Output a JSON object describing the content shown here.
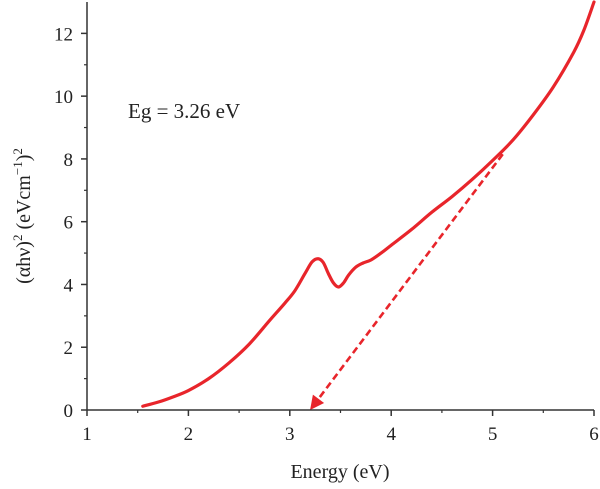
{
  "chart_data": {
    "type": "line",
    "xlabel": "Energy (eV)",
    "ylabel_parts": [
      "(αhν)",
      "2",
      " (eVcm",
      "−1",
      ")",
      "2"
    ],
    "xlim": [
      1,
      6
    ],
    "ylim": [
      0,
      13
    ],
    "xticks": [
      1,
      2,
      3,
      4,
      5,
      6
    ],
    "yticks": [
      0,
      2,
      4,
      6,
      8,
      10,
      12
    ],
    "grid": false,
    "annotation": "Eg = 3.26 eV",
    "colors": {
      "curve": "#e8252b",
      "axis": "#333333"
    },
    "series": [
      {
        "style": "solid",
        "x": [
          1.55,
          1.7,
          1.85,
          2.0,
          2.2,
          2.4,
          2.6,
          2.8,
          2.95,
          3.05,
          3.15,
          3.22,
          3.28,
          3.33,
          3.38,
          3.43,
          3.48,
          3.53,
          3.58,
          3.65,
          3.72,
          3.8,
          3.9,
          4.0,
          4.2,
          4.4,
          4.6,
          4.8,
          5.0,
          5.2,
          5.4,
          5.6,
          5.8,
          5.9,
          6.0
        ],
        "y": [
          0.12,
          0.25,
          0.42,
          0.62,
          1.0,
          1.5,
          2.1,
          2.85,
          3.4,
          3.8,
          4.35,
          4.72,
          4.82,
          4.7,
          4.35,
          4.05,
          3.92,
          4.05,
          4.3,
          4.55,
          4.68,
          4.78,
          5.0,
          5.25,
          5.75,
          6.3,
          6.8,
          7.35,
          7.95,
          8.6,
          9.4,
          10.3,
          11.4,
          12.1,
          13.0
        ]
      },
      {
        "style": "dashed-arrow",
        "x": [
          5.1,
          3.2
        ],
        "y": [
          8.15,
          0.0
        ]
      }
    ]
  }
}
